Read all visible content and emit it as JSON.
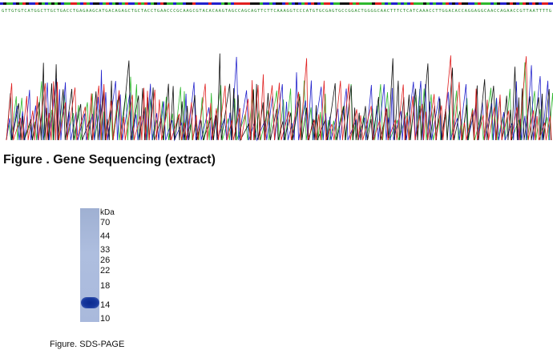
{
  "sequence": {
    "title": "Figure . Gene Sequencing (extract)",
    "colors": {
      "A": "#2eb82e",
      "C": "#2222cc",
      "G": "#111111",
      "T": "#e02020"
    }
  },
  "gel": {
    "unit": "kDa",
    "markers": [
      "70",
      "44",
      "33",
      "26",
      "22",
      "18",
      "14",
      "10"
    ],
    "caption": "Figure. SDS-PAGE"
  }
}
